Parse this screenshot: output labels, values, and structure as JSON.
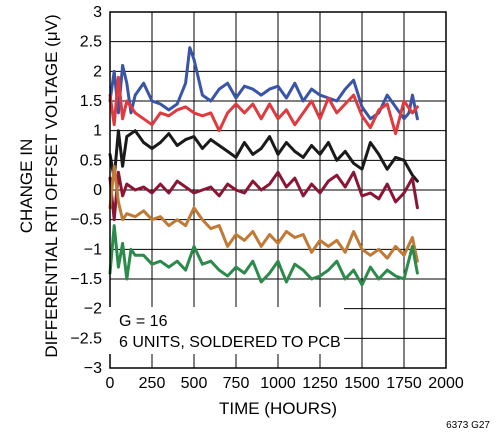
{
  "chart_data": {
    "type": "line",
    "xlabel": "TIME (HOURS)",
    "ylabel_lines": [
      "CHANGE IN",
      "DIFFERENTIAL RTI OFFSET VOLTAGE (μV)"
    ],
    "xlim": [
      0,
      2000
    ],
    "ylim": [
      -3,
      3
    ],
    "xticks": [
      "0",
      "250",
      "500",
      "750",
      "1000",
      "1250",
      "1500",
      "1750",
      "2000"
    ],
    "yticks": [
      "3",
      "2.5",
      "2",
      "1.5",
      "1",
      "0.5",
      "0",
      "−0.5",
      "−1",
      "−1.5",
      "−2",
      "−2.5",
      "−3"
    ],
    "grid": true,
    "annotation_lines": [
      "G = 16",
      "6 UNITS, SOLDERED TO PCB"
    ],
    "figure_id": "6373 G27",
    "series": [
      {
        "color": "#3a55a8",
        "x": [
          0,
          25,
          50,
          75,
          100,
          125,
          150,
          200,
          250,
          300,
          350,
          400,
          450,
          475,
          500,
          550,
          600,
          650,
          700,
          750,
          800,
          850,
          900,
          950,
          1000,
          1050,
          1100,
          1150,
          1200,
          1250,
          1300,
          1350,
          1400,
          1450,
          1500,
          1550,
          1600,
          1650,
          1700,
          1750,
          1780,
          1800,
          1830
        ],
        "y": [
          1.5,
          2.0,
          1.3,
          2.1,
          1.8,
          1.3,
          1.6,
          1.8,
          1.5,
          1.45,
          1.35,
          1.45,
          1.8,
          2.4,
          2.2,
          1.6,
          1.5,
          1.7,
          1.8,
          1.55,
          1.75,
          1.7,
          1.6,
          1.7,
          1.75,
          1.55,
          1.8,
          1.5,
          1.7,
          1.6,
          1.55,
          1.5,
          1.7,
          1.85,
          1.4,
          1.2,
          1.3,
          1.6,
          1.4,
          1.2,
          1.3,
          1.6,
          1.2
        ]
      },
      {
        "color": "#e03a3e",
        "x": [
          0,
          25,
          50,
          75,
          100,
          150,
          200,
          250,
          300,
          350,
          400,
          450,
          500,
          550,
          600,
          650,
          700,
          750,
          800,
          850,
          900,
          950,
          1000,
          1050,
          1100,
          1150,
          1200,
          1250,
          1300,
          1350,
          1400,
          1450,
          1500,
          1550,
          1600,
          1650,
          1700,
          1750,
          1800,
          1830
        ],
        "y": [
          1.6,
          1.1,
          1.9,
          1.2,
          1.5,
          1.3,
          1.2,
          1.1,
          1.3,
          1.25,
          1.35,
          1.4,
          1.3,
          1.25,
          1.3,
          1.0,
          1.3,
          1.45,
          1.3,
          1.45,
          1.2,
          1.45,
          1.2,
          1.35,
          1.1,
          1.3,
          1.5,
          1.2,
          1.55,
          1.3,
          1.45,
          1.6,
          1.25,
          1.05,
          1.35,
          1.45,
          0.95,
          1.5,
          1.3,
          1.4
        ]
      },
      {
        "color": "#1a1a1a",
        "x": [
          0,
          25,
          50,
          75,
          100,
          150,
          200,
          250,
          300,
          350,
          400,
          450,
          500,
          550,
          600,
          650,
          700,
          750,
          800,
          850,
          900,
          950,
          1000,
          1050,
          1100,
          1150,
          1200,
          1250,
          1300,
          1350,
          1400,
          1450,
          1500,
          1550,
          1600,
          1650,
          1700,
          1750,
          1800,
          1830
        ],
        "y": [
          0.6,
          0.2,
          1.0,
          0.4,
          0.9,
          1.0,
          0.8,
          0.7,
          0.8,
          0.95,
          0.75,
          0.85,
          0.9,
          0.7,
          0.85,
          0.75,
          0.65,
          0.55,
          0.8,
          0.6,
          0.7,
          0.9,
          0.6,
          0.8,
          0.65,
          0.55,
          0.75,
          0.6,
          0.8,
          0.5,
          0.65,
          0.45,
          0.35,
          0.8,
          0.6,
          0.35,
          0.55,
          0.5,
          0.25,
          0.15
        ]
      },
      {
        "color": "#8b1535",
        "x": [
          0,
          25,
          50,
          75,
          100,
          150,
          200,
          250,
          300,
          350,
          400,
          450,
          500,
          550,
          600,
          650,
          700,
          750,
          800,
          850,
          900,
          950,
          1000,
          1050,
          1100,
          1150,
          1200,
          1250,
          1300,
          1350,
          1400,
          1450,
          1500,
          1550,
          1600,
          1650,
          1700,
          1750,
          1800,
          1830
        ],
        "y": [
          0.2,
          -0.5,
          0.3,
          -0.1,
          0.1,
          0.0,
          0.05,
          -0.05,
          0.1,
          -0.05,
          0.15,
          0.05,
          -0.05,
          0.0,
          0.05,
          -0.1,
          0.1,
          0.0,
          -0.05,
          0.15,
          0.0,
          0.1,
          0.3,
          0.05,
          0.2,
          -0.1,
          0.1,
          -0.05,
          0.15,
          0.25,
          0.05,
          0.3,
          -0.1,
          -0.05,
          -0.15,
          0.1,
          -0.2,
          -0.05,
          0.2,
          -0.3
        ]
      },
      {
        "color": "#c07a35",
        "x": [
          0,
          25,
          50,
          75,
          100,
          150,
          200,
          250,
          300,
          350,
          400,
          450,
          500,
          550,
          600,
          650,
          700,
          750,
          800,
          850,
          900,
          950,
          1000,
          1050,
          1100,
          1150,
          1200,
          1250,
          1300,
          1350,
          1400,
          1450,
          1500,
          1550,
          1600,
          1650,
          1700,
          1750,
          1800,
          1830
        ],
        "y": [
          -0.3,
          0.4,
          -0.2,
          -0.5,
          -0.4,
          -0.45,
          -0.35,
          -0.5,
          -0.45,
          -0.6,
          -0.5,
          -0.6,
          -0.3,
          -0.5,
          -0.65,
          -0.6,
          -0.95,
          -0.75,
          -0.85,
          -0.7,
          -0.95,
          -0.75,
          -0.9,
          -0.7,
          -0.8,
          -0.75,
          -1.05,
          -0.85,
          -0.95,
          -0.85,
          -1.05,
          -0.7,
          -1.0,
          -1.1,
          -1.0,
          -1.15,
          -0.95,
          -1.1,
          -0.8,
          -1.2
        ]
      },
      {
        "color": "#2c8a4b",
        "x": [
          0,
          25,
          50,
          75,
          100,
          125,
          150,
          200,
          250,
          300,
          350,
          400,
          450,
          500,
          550,
          600,
          650,
          700,
          750,
          800,
          850,
          900,
          950,
          1000,
          1050,
          1100,
          1150,
          1200,
          1250,
          1300,
          1350,
          1400,
          1450,
          1500,
          1550,
          1600,
          1650,
          1700,
          1750,
          1800,
          1830
        ],
        "y": [
          -1.4,
          -0.6,
          -1.3,
          -0.9,
          -1.5,
          -1.0,
          -1.1,
          -1.1,
          -1.25,
          -1.2,
          -1.3,
          -1.2,
          -1.35,
          -0.95,
          -1.25,
          -1.2,
          -1.35,
          -1.45,
          -1.3,
          -1.4,
          -1.2,
          -1.55,
          -1.4,
          -1.2,
          -1.55,
          -1.25,
          -1.35,
          -1.5,
          -1.45,
          -1.35,
          -1.2,
          -1.5,
          -1.35,
          -1.6,
          -1.3,
          -1.5,
          -1.35,
          -1.45,
          -1.5,
          -0.95,
          -1.4
        ]
      }
    ]
  }
}
